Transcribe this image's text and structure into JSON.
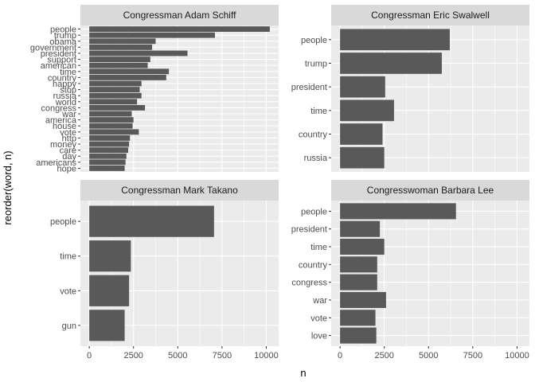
{
  "colors": {
    "panel_bg": "#ebebeb",
    "strip_bg": "#d9d9d9",
    "grid_major": "#ffffff",
    "bar_fill": "#595959"
  },
  "axis_titles": {
    "x": "n",
    "y": "reorder(word, n)"
  },
  "chart_data": [
    {
      "type": "bar",
      "orientation": "horizontal",
      "facet": "Congressman Adam Schiff",
      "categories": [
        "people",
        "trump",
        "obama",
        "government",
        "president",
        "support",
        "american",
        "time",
        "country",
        "happy",
        "stop",
        "russia",
        "world",
        "congress",
        "war",
        "america",
        "house",
        "vote",
        "http",
        "money",
        "care",
        "day",
        "americans",
        "hope"
      ],
      "values": [
        10200,
        7100,
        3750,
        3550,
        5550,
        3450,
        3300,
        4500,
        4350,
        2950,
        2850,
        2950,
        2700,
        3150,
        2400,
        2500,
        2450,
        2800,
        2300,
        2250,
        2200,
        2100,
        2050,
        2000
      ],
      "xlim": [
        -500,
        10700
      ],
      "xticks": [
        0,
        2500,
        5000,
        7500,
        10000
      ],
      "xtick_labels": [
        "0",
        "2500",
        "5000",
        "7500",
        "10000"
      ]
    },
    {
      "type": "bar",
      "orientation": "horizontal",
      "facet": "Congressman Eric Swalwell",
      "categories": [
        "people",
        "trump",
        "president",
        "time",
        "country",
        "russia"
      ],
      "values": [
        6200,
        5750,
        2550,
        3050,
        2400,
        2500
      ],
      "xlim": [
        -500,
        10700
      ],
      "xticks": [
        0,
        2500,
        5000,
        7500,
        10000
      ],
      "xtick_labels": [
        "0",
        "2500",
        "5000",
        "7500",
        "10000"
      ]
    },
    {
      "type": "bar",
      "orientation": "horizontal",
      "facet": "Congressman Mark Takano",
      "categories": [
        "people",
        "time",
        "vote",
        "gun"
      ],
      "values": [
        7050,
        2350,
        2250,
        2000
      ],
      "xlim": [
        -500,
        10700
      ],
      "xticks": [
        0,
        2500,
        5000,
        7500,
        10000
      ],
      "xtick_labels": [
        "0",
        "2500",
        "5000",
        "7500",
        "10000"
      ]
    },
    {
      "type": "bar",
      "orientation": "horizontal",
      "facet": "Congresswoman Barbara Lee",
      "categories": [
        "people",
        "president",
        "time",
        "country",
        "congress",
        "war",
        "vote",
        "love"
      ],
      "values": [
        6550,
        2250,
        2500,
        2100,
        2100,
        2600,
        2000,
        2050
      ],
      "xlim": [
        -500,
        10700
      ],
      "xticks": [
        0,
        2500,
        5000,
        7500,
        10000
      ],
      "xtick_labels": [
        "0",
        "2500",
        "5000",
        "7500",
        "10000"
      ]
    }
  ]
}
